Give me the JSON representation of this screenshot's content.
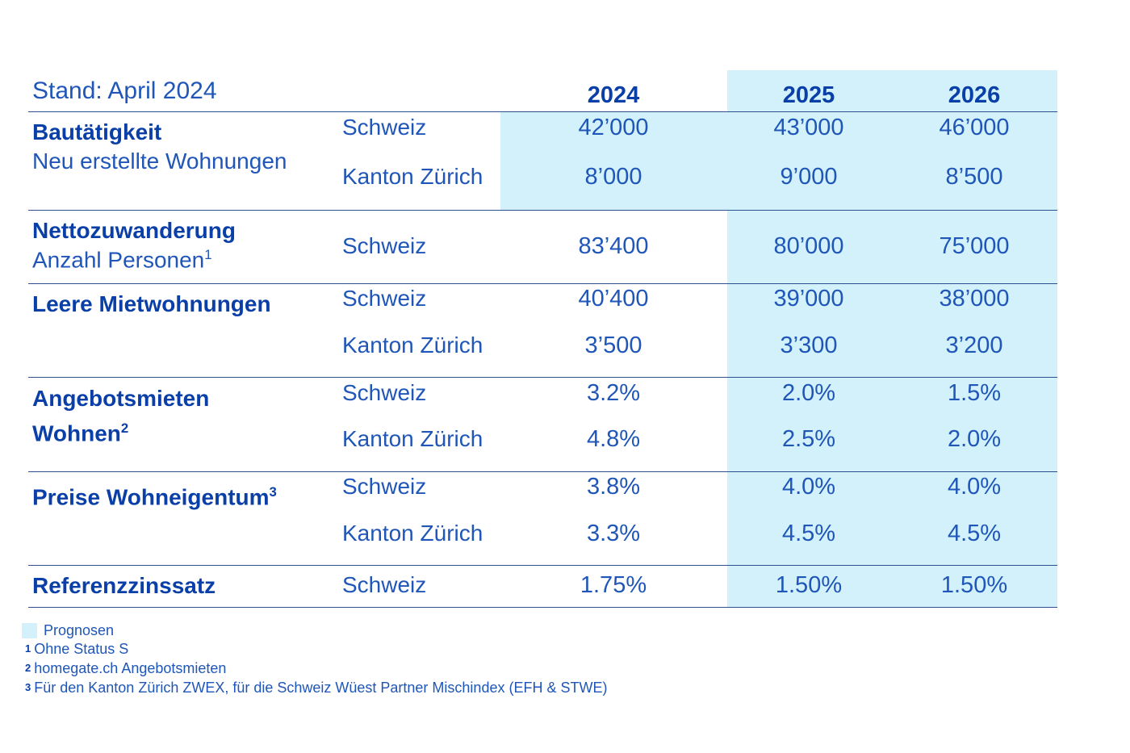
{
  "stand": "Stand: April 2024",
  "years": [
    "2024",
    "2025",
    "2026"
  ],
  "rows": {
    "bau": {
      "title": "Bautätigkeit",
      "subtitle": "Neu erstellte Wohnungen",
      "r1": {
        "region": "Schweiz",
        "v": [
          "42’000",
          "43’000",
          "46’000"
        ]
      },
      "r2": {
        "region": "Kanton Zürich",
        "v": [
          "8’000",
          "9’000",
          "8’500"
        ]
      }
    },
    "netto": {
      "title": "Nettozuwanderung",
      "subtitle": "Anzahl Personen",
      "subtitle_sup": "1",
      "r1": {
        "region": "Schweiz",
        "v": [
          "83’400",
          "80’000",
          "75’000"
        ]
      }
    },
    "leer": {
      "title": "Leere Mietwohnungen",
      "r1": {
        "region": "Schweiz",
        "v": [
          "40’400",
          "39’000",
          "38’000"
        ]
      },
      "r2": {
        "region": "Kanton Zürich",
        "v": [
          "3’500",
          "3’300",
          "3’200"
        ]
      }
    },
    "angebot": {
      "title_line1": "Angebotsmieten",
      "title_line2": "Wohnen",
      "title_sup": "2",
      "r1": {
        "region": "Schweiz",
        "v": [
          "3.2%",
          "2.0%",
          "1.5%"
        ]
      },
      "r2": {
        "region": "Kanton Zürich",
        "v": [
          "4.8%",
          "2.5%",
          "2.0%"
        ]
      }
    },
    "preise": {
      "title": "Preise Wohneigentum",
      "title_sup": "3",
      "r1": {
        "region": "Schweiz",
        "v": [
          "3.8%",
          "4.0%",
          "4.0%"
        ]
      },
      "r2": {
        "region": "Kanton Zürich",
        "v": [
          "3.3%",
          "4.5%",
          "4.5%"
        ]
      }
    },
    "ref": {
      "title": "Referenzzinssatz",
      "r1": {
        "region": "Schweiz",
        "v": [
          "1.75%",
          "1.50%",
          "1.50%"
        ]
      }
    }
  },
  "footnotes": {
    "legend": "Prognosen",
    "f1_num": "1",
    "f1": "Ohne Status S",
    "f2_num": "2",
    "f2": "homegate.ch Angebotsmieten",
    "f3_num": "3",
    "f3": "Für den Kanton Zürich ZWEX, für die Schweiz Wüest Partner Mischindex (EFH & STWE)"
  },
  "colors": {
    "forecast_shade": "#d2f1fb",
    "text_dark": "#0a3fa8",
    "text": "#1f56b8"
  }
}
